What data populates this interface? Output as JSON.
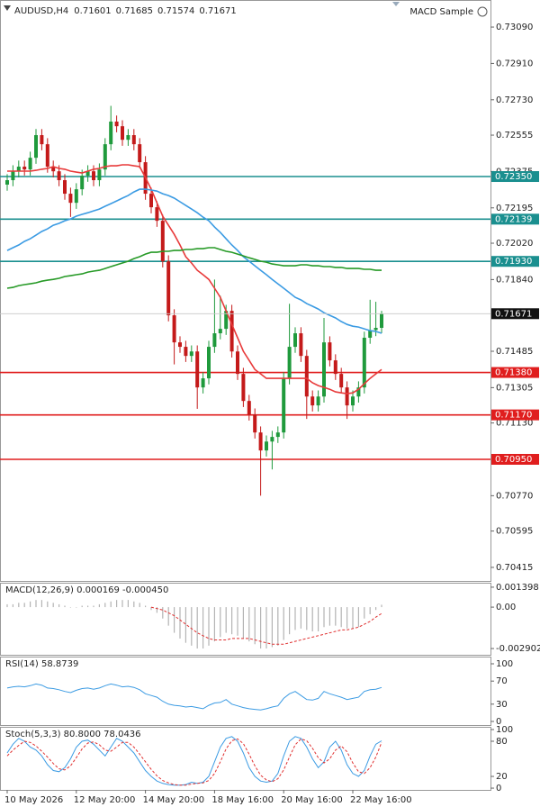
{
  "chart_data": [
    {
      "type": "candlestick",
      "title": "AUDUSD,H4",
      "annotation": "MACD Sample",
      "categories": [
        "10 May 2026",
        null,
        null,
        null,
        null,
        null,
        null,
        null,
        null,
        null,
        null,
        null,
        "12 May 20:00",
        null,
        null,
        null,
        null,
        null,
        null,
        null,
        null,
        null,
        null,
        null,
        "14 May 20:00",
        null,
        null,
        null,
        null,
        null,
        null,
        null,
        null,
        null,
        null,
        null,
        "18 May 16:00",
        null,
        null,
        null,
        null,
        null,
        null,
        null,
        null,
        null,
        null,
        null,
        "20 May 16:00",
        null,
        null,
        null,
        null,
        null,
        null,
        null,
        null,
        null,
        null,
        null,
        "22 May 16:00",
        null,
        null,
        null,
        null,
        null
      ],
      "open": [
        0.7231,
        0.72332,
        0.72376,
        0.72399,
        0.72385,
        0.72443,
        0.72555,
        0.7251,
        0.72399,
        0.72376,
        0.72332,
        0.72265,
        0.7222,
        0.72287,
        0.72354,
        0.72376,
        0.72332,
        0.72385,
        0.7251,
        0.72622,
        0.72599,
        0.72532,
        0.72555,
        0.7251,
        0.72421,
        0.72265,
        0.72198,
        0.72131,
        0.7193,
        0.71663,
        0.71529,
        0.71507,
        0.71462,
        0.71484,
        0.71306,
        0.71351,
        0.71507,
        0.71574,
        0.71596,
        0.71685,
        0.71484,
        0.71373,
        0.71239,
        0.71172,
        0.71083,
        0.70994,
        0.71038,
        0.71061,
        0.71083,
        0.71351,
        0.71507,
        0.71574,
        0.71462,
        0.71261,
        0.71217,
        0.71261,
        0.71529,
        0.7144,
        0.71373,
        0.71306,
        0.71217,
        0.71261,
        0.71306,
        0.71552,
        0.7159,
        0.71601
      ],
      "high": [
        0.72362,
        0.72406,
        0.72429,
        0.72429,
        0.72473,
        0.72585,
        0.72585,
        0.7254,
        0.72429,
        0.72406,
        0.72362,
        0.72295,
        0.72317,
        0.72384,
        0.72406,
        0.72406,
        0.72415,
        0.7254,
        0.727,
        0.72652,
        0.72629,
        0.72585,
        0.72585,
        0.7254,
        0.72451,
        0.72295,
        0.72228,
        0.72161,
        0.7196,
        0.71693,
        0.71559,
        0.71537,
        0.71514,
        0.71514,
        0.71381,
        0.71537,
        0.7184,
        0.7176,
        0.71715,
        0.71715,
        0.71514,
        0.71403,
        0.71269,
        0.71202,
        0.71113,
        0.71068,
        0.71091,
        0.71113,
        0.71381,
        0.7172,
        0.71604,
        0.71604,
        0.71492,
        0.71291,
        0.71291,
        0.7165,
        0.71559,
        0.7147,
        0.71403,
        0.71336,
        0.71291,
        0.71336,
        0.71582,
        0.7174,
        0.7173,
        0.71685
      ],
      "low": [
        0.7228,
        0.72302,
        0.72346,
        0.72355,
        0.72355,
        0.72413,
        0.7248,
        0.72369,
        0.72346,
        0.72302,
        0.72235,
        0.7215,
        0.7219,
        0.72257,
        0.72324,
        0.72302,
        0.72302,
        0.72355,
        0.7248,
        0.72569,
        0.72502,
        0.72502,
        0.7248,
        0.72391,
        0.72235,
        0.72168,
        0.72101,
        0.719,
        0.71633,
        0.7142,
        0.71477,
        0.71432,
        0.71432,
        0.712,
        0.71276,
        0.71321,
        0.71477,
        0.71544,
        0.71566,
        0.71454,
        0.71343,
        0.71209,
        0.71142,
        0.71053,
        0.7077,
        0.70964,
        0.709,
        0.71031,
        0.71053,
        0.71321,
        0.71477,
        0.71432,
        0.7115,
        0.71187,
        0.71187,
        0.71231,
        0.7141,
        0.71343,
        0.71276,
        0.7115,
        0.71187,
        0.71231,
        0.71276,
        0.71522,
        0.7156,
        0.71574
      ],
      "close": [
        0.72332,
        0.72376,
        0.72399,
        0.72385,
        0.72443,
        0.72555,
        0.7251,
        0.72399,
        0.72376,
        0.72332,
        0.72265,
        0.7222,
        0.72287,
        0.72354,
        0.72376,
        0.72332,
        0.72385,
        0.7251,
        0.72622,
        0.72599,
        0.72532,
        0.72555,
        0.7251,
        0.72421,
        0.72265,
        0.72198,
        0.72131,
        0.7193,
        0.71663,
        0.71529,
        0.71507,
        0.71462,
        0.71484,
        0.71306,
        0.71351,
        0.71507,
        0.71574,
        0.71596,
        0.71685,
        0.71484,
        0.71373,
        0.71239,
        0.71172,
        0.71083,
        0.70994,
        0.71038,
        0.71061,
        0.71083,
        0.71351,
        0.71507,
        0.71574,
        0.71462,
        0.71261,
        0.71217,
        0.71261,
        0.71529,
        0.7144,
        0.71373,
        0.71306,
        0.71217,
        0.71261,
        0.71306,
        0.71552,
        0.7159,
        0.71601,
        0.71671
      ],
      "up_color": "#1f9a3c",
      "down_color": "#c41a1a",
      "lines": [
        {
          "color": "#e83a3a",
          "values": [
            0.72377,
            0.72377,
            0.72377,
            0.72377,
            0.72377,
            0.72381,
            0.72386,
            0.7239,
            0.72399,
            0.7239,
            0.72386,
            0.72377,
            0.72372,
            0.72368,
            0.72377,
            0.72386,
            0.7239,
            0.72399,
            0.72403,
            0.72403,
            0.72408,
            0.72408,
            0.72403,
            0.72399,
            0.72345,
            0.72287,
            0.7222,
            0.72154,
            0.72109,
            0.72064,
            0.72011,
            0.71953,
            0.71922,
            0.71886,
            0.71864,
            0.71841,
            0.71797,
            0.71752,
            0.71685,
            0.71618,
            0.71552,
            0.71485,
            0.7144,
            0.71395,
            0.71373,
            0.71351,
            0.71351,
            0.71351,
            0.71351,
            0.71351,
            0.71351,
            0.71351,
            0.71351,
            0.71329,
            0.71315,
            0.71306,
            0.71297,
            0.71284,
            0.71279,
            0.71275,
            0.71279,
            0.71297,
            0.71324,
            0.71351,
            0.71373,
            0.71395
          ]
        },
        {
          "color": "#3b9be3",
          "values": [
            0.71984,
            0.71998,
            0.72011,
            0.72029,
            0.72042,
            0.7206,
            0.72078,
            0.72091,
            0.72109,
            0.72118,
            0.72131,
            0.7214,
            0.72154,
            0.72163,
            0.72171,
            0.7218,
            0.72189,
            0.72203,
            0.72216,
            0.72229,
            0.72243,
            0.72256,
            0.72274,
            0.72287,
            0.72287,
            0.72283,
            0.72278,
            0.72265,
            0.72256,
            0.72243,
            0.72225,
            0.72207,
            0.72189,
            0.72171,
            0.72149,
            0.72131,
            0.721,
            0.72073,
            0.72042,
            0.72011,
            0.71984,
            0.71953,
            0.71931,
            0.71908,
            0.71886,
            0.71864,
            0.71841,
            0.71819,
            0.71797,
            0.71775,
            0.71752,
            0.71739,
            0.71721,
            0.71708,
            0.71694,
            0.71676,
            0.71663,
            0.7165,
            0.71632,
            0.71618,
            0.71609,
            0.71605,
            0.71596,
            0.71587,
            0.71583,
            0.71574
          ]
        },
        {
          "color": "#279a27",
          "values": [
            0.71797,
            0.71801,
            0.7181,
            0.71815,
            0.71819,
            0.71824,
            0.71832,
            0.71837,
            0.71841,
            0.71846,
            0.71855,
            0.71859,
            0.71864,
            0.71868,
            0.71877,
            0.71882,
            0.71886,
            0.71895,
            0.71904,
            0.71913,
            0.71922,
            0.71931,
            0.71944,
            0.71953,
            0.71966,
            0.71975,
            0.71975,
            0.7198,
            0.7198,
            0.71984,
            0.71984,
            0.71989,
            0.71989,
            0.71993,
            0.71993,
            0.71998,
            0.71998,
            0.71989,
            0.7198,
            0.71975,
            0.71966,
            0.71957,
            0.71948,
            0.7194,
            0.71931,
            0.71926,
            0.71917,
            0.71913,
            0.71908,
            0.71908,
            0.71908,
            0.71913,
            0.71913,
            0.71908,
            0.71908,
            0.71904,
            0.71904,
            0.719,
            0.719,
            0.71895,
            0.71895,
            0.71895,
            0.71891,
            0.71891,
            0.71886,
            0.71886
          ]
        }
      ],
      "levels": [
        {
          "value": 0.7235,
          "label": "0.72350",
          "color": "#1a8f8f"
        },
        {
          "value": 0.72139,
          "label": "0.72139",
          "color": "#1a8f8f"
        },
        {
          "value": 0.7193,
          "label": "0.71930",
          "color": "#1a8f8f"
        },
        {
          "value": 0.7138,
          "label": "0.71380",
          "color": "#e01e1e"
        },
        {
          "value": 0.7117,
          "label": "0.71170",
          "color": "#e01e1e"
        },
        {
          "value": 0.7095,
          "label": "0.70950",
          "color": "#e01e1e"
        }
      ],
      "ylim": [
        0.70348,
        0.73224
      ],
      "yticks": [
        {
          "value": 0.7309,
          "label": "0.73090"
        },
        {
          "value": 0.7291,
          "label": "0.72910"
        },
        {
          "value": 0.7273,
          "label": "0.72730"
        },
        0.72555,
        0.72375,
        0.72195,
        {
          "value": 0.7202,
          "label": "0.72020"
        },
        {
          "value": 0.7184,
          "label": "0.71840"
        },
        0.71485,
        0.71305,
        {
          "value": 0.7113,
          "label": "0.71130"
        },
        {
          "value": 0.7077,
          "label": "0.70770"
        },
        0.70595,
        0.70415
      ]
    },
    {
      "type": "bar",
      "title": "MACD(12,26,9) 0.000169 -0.000450",
      "series": [
        {
          "color": "#b4b4b4",
          "values": [
            0.0002,
            0.0002,
            0.0003,
            0.0003,
            0.0004,
            0.0005,
            0.0005,
            0.0004,
            0.0003,
            0.0002,
            0.0001,
            0,
            0,
            0.0001,
            0.0001,
            0.0001,
            0.0002,
            0.0003,
            0.0004,
            0.0005,
            0.0005,
            0.0005,
            0.0004,
            0.0003,
            0.0001,
            -0.0002,
            -0.0004,
            -0.0008,
            -0.0013,
            -0.0018,
            -0.0022,
            -0.0025,
            -0.0027,
            -0.0029,
            -0.0029,
            -0.0027,
            -0.0024,
            -0.0021,
            -0.0018,
            -0.0019,
            -0.002,
            -0.0022,
            -0.0024,
            -0.0026,
            -0.0029,
            -0.0029,
            -0.0028,
            -0.0027,
            -0.0023,
            -0.0019,
            -0.0016,
            -0.0015,
            -0.0016,
            -0.0017,
            -0.0017,
            -0.0014,
            -0.0013,
            -0.0013,
            -0.0014,
            -0.0015,
            -0.0015,
            -0.0014,
            -0.0008,
            -0.0005,
            -0.0002,
            0.000169
          ]
        },
        {
          "color": "#e03030",
          "dash": true,
          "values": [
            null,
            null,
            null,
            null,
            null,
            null,
            null,
            null,
            null,
            null,
            null,
            null,
            null,
            null,
            null,
            null,
            null,
            null,
            null,
            null,
            null,
            null,
            null,
            null,
            null,
            0,
            -0.0001,
            -0.0002,
            -0.0004,
            -0.0006,
            -0.0009,
            -0.0012,
            -0.0015,
            -0.0018,
            -0.002,
            -0.0022,
            -0.0023,
            -0.0023,
            -0.0023,
            -0.0022,
            -0.0022,
            -0.0022,
            -0.0022,
            -0.0023,
            -0.0024,
            -0.0025,
            -0.0026,
            -0.0026,
            -0.0026,
            -0.0025,
            -0.0024,
            -0.0023,
            -0.0022,
            -0.0021,
            -0.002,
            -0.0019,
            -0.0018,
            -0.0017,
            -0.0016,
            -0.0016,
            -0.0015,
            -0.0014,
            -0.0012,
            -0.001,
            -0.0007,
            -0.00045
          ]
        }
      ],
      "ylim": [
        -0.00334,
        0.00171
      ],
      "yticks": [
        0.001398,
        {
          "value": 0,
          "label": "0.00"
        },
        -0.002902
      ]
    },
    {
      "type": "line",
      "title": "RSI(14) 58.8739",
      "series": [
        {
          "color": "#3b9be3",
          "values": [
            58,
            60,
            61,
            60,
            62,
            65,
            63,
            58,
            57,
            55,
            52,
            50,
            54,
            57,
            58,
            56,
            58,
            62,
            65,
            63,
            60,
            61,
            59,
            55,
            48,
            45,
            42,
            35,
            30,
            28,
            27,
            25,
            26,
            24,
            22,
            28,
            32,
            33,
            38,
            30,
            27,
            24,
            22,
            21,
            20,
            22,
            25,
            27,
            40,
            48,
            52,
            45,
            38,
            37,
            40,
            52,
            48,
            45,
            42,
            38,
            40,
            42,
            52,
            55,
            56,
            58.8739
          ]
        }
      ],
      "ylim": [
        -6.25,
        112.5
      ],
      "yticks": [
        100,
        70,
        30,
        0
      ]
    },
    {
      "type": "line",
      "title": "Stoch(5,3,3) 80.8000 78.0436",
      "series": [
        {
          "color": "#3b9be3",
          "values": [
            60,
            75,
            85,
            80,
            70,
            65,
            55,
            40,
            30,
            28,
            35,
            50,
            70,
            80,
            82,
            75,
            65,
            55,
            70,
            85,
            80,
            70,
            60,
            45,
            30,
            20,
            12,
            8,
            6,
            5,
            5,
            6,
            10,
            8,
            10,
            20,
            45,
            70,
            85,
            88,
            80,
            60,
            35,
            20,
            12,
            10,
            12,
            25,
            55,
            80,
            88,
            85,
            70,
            50,
            35,
            45,
            70,
            80,
            65,
            40,
            25,
            20,
            30,
            55,
            75,
            80.8
          ]
        },
        {
          "color": "#e03030",
          "dash": true,
          "values": [
            55,
            65,
            73,
            80,
            78,
            72,
            63,
            53,
            42,
            33,
            31,
            38,
            52,
            67,
            77,
            79,
            74,
            65,
            63,
            70,
            78,
            78,
            70,
            58,
            45,
            32,
            21,
            13,
            9,
            6,
            5,
            5,
            7,
            8,
            9,
            13,
            25,
            45,
            67,
            81,
            84,
            76,
            58,
            38,
            22,
            14,
            11,
            16,
            31,
            53,
            74,
            84,
            81,
            68,
            52,
            43,
            50,
            65,
            72,
            62,
            43,
            28,
            25,
            35,
            53,
            78.0436
          ]
        }
      ],
      "ylim": [
        -3,
        104.6
      ],
      "yticks": [
        100,
        80,
        20,
        0
      ]
    }
  ]
}
